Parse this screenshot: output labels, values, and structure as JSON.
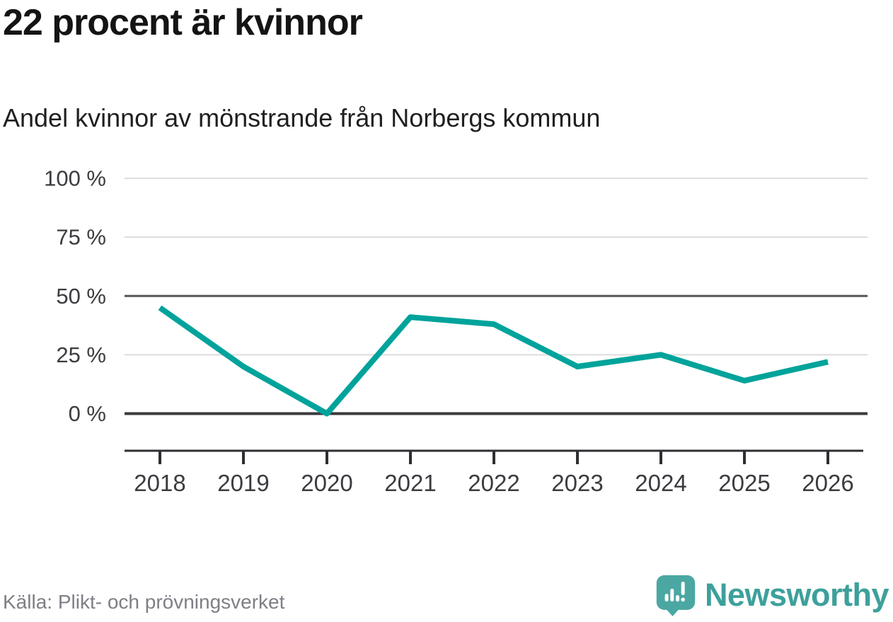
{
  "header": {
    "title": "22 procent är kvinnor",
    "subtitle": "Andel kvinnor av mönstrande från Norbergs kommun"
  },
  "chart_data": {
    "type": "line",
    "title": "22 procent är kvinnor",
    "subtitle": "Andel kvinnor av mönstrande från Norbergs kommun",
    "categories": [
      "2018",
      "2019",
      "2020",
      "2021",
      "2022",
      "2023",
      "2024",
      "2025",
      "2026"
    ],
    "series": [
      {
        "name": "Andel kvinnor av mönstrande",
        "values": [
          45,
          20,
          0,
          41,
          38,
          20,
          25,
          14,
          22
        ]
      }
    ],
    "unit": "%",
    "ylim": [
      0,
      100
    ],
    "yticks": [
      0,
      25,
      50,
      75,
      100
    ],
    "ytick_labels": [
      "0 %",
      "25 %",
      "50 %",
      "75 %",
      "100 %"
    ],
    "reference_line": 50,
    "grid": "horizontal",
    "legend": "none",
    "line_color": "#00a39b"
  },
  "footer": {
    "source": "Källa: Plikt- och prövningsverket",
    "brand": "Newsworthy"
  },
  "colors": {
    "line_teal": "#00a39b",
    "brand_teal": "#4ba7a2",
    "brand_text_teal": "#3da09b",
    "title_black": "#141414",
    "axis_dark": "#2f2f33",
    "gridline_light": "#dcdcde",
    "reference_gray": "#55565c",
    "source_gray": "#7e7e86"
  },
  "icons": {
    "logo": "newsworthy-speech-bubble-barchart-icon"
  }
}
